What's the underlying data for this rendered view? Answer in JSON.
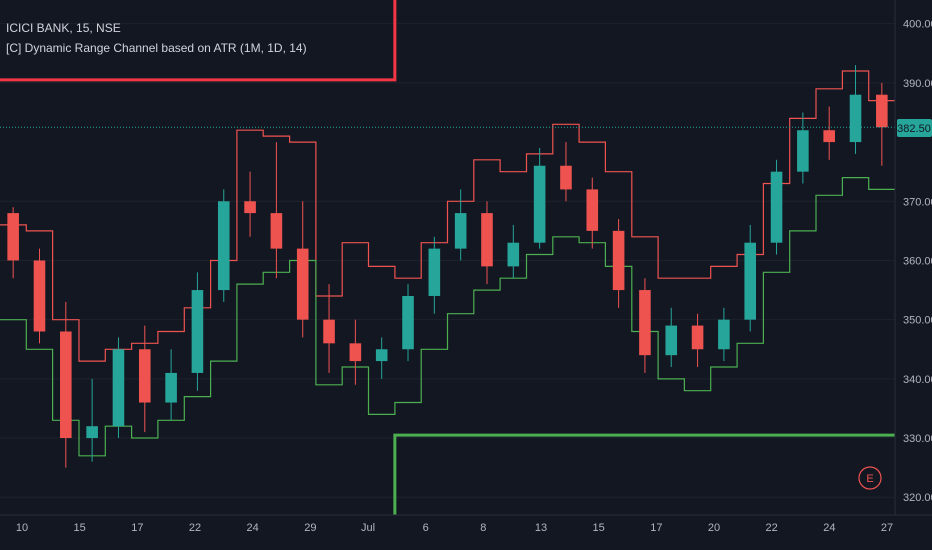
{
  "legend": {
    "symbol_line": "ICICI BANK, 15, NSE",
    "indicator_line": "[C] Dynamic Range Channel based on ATR (1M, 1D, 14)"
  },
  "price_badge": {
    "value": "382.50",
    "color": "#26a69a"
  },
  "event_marker": {
    "label": "E",
    "color": "#ef5350"
  },
  "colors": {
    "background": "#131722",
    "upper_channel": "#ef5350",
    "lower_channel": "#4caf50",
    "monthly_upper": "#f23645",
    "monthly_lower": "#4caf50",
    "candle_up": "#26a69a",
    "candle_down": "#ef5350",
    "last_price_line": "#26a69a"
  },
  "chart_data": {
    "type": "line",
    "title": "ICICI BANK, 15, NSE",
    "x_ticks": [
      "10",
      "15",
      "17",
      "22",
      "24",
      "29",
      "Jul",
      "6",
      "8",
      "13",
      "15",
      "17",
      "20",
      "22",
      "24",
      "27"
    ],
    "y_ticks": [
      "400.00",
      "390.00",
      "370.00",
      "360.00",
      "350.00",
      "340.00",
      "330.00",
      "320.00"
    ],
    "ylim": [
      317,
      404
    ],
    "last_price": 382.5,
    "monthly_range": {
      "upper": 390.5,
      "lower": 330.5,
      "switch_after_session": 15
    },
    "sessions": [
      {
        "date": "10",
        "open": 368,
        "high": 369,
        "low": 357,
        "close": 360,
        "upper": 366,
        "lower": 350
      },
      {
        "date": "13",
        "open": 360,
        "high": 362,
        "low": 346,
        "close": 348,
        "upper": 365,
        "lower": 345
      },
      {
        "date": "14",
        "open": 348,
        "high": 353,
        "low": 325,
        "close": 330,
        "upper": 350,
        "lower": 333
      },
      {
        "date": "15",
        "open": 330,
        "high": 340,
        "low": 326,
        "close": 332,
        "upper": 343,
        "lower": 327
      },
      {
        "date": "16",
        "open": 332,
        "high": 347,
        "low": 330,
        "close": 345,
        "upper": 345,
        "lower": 332
      },
      {
        "date": "17",
        "open": 345,
        "high": 349,
        "low": 331,
        "close": 336,
        "upper": 346,
        "lower": 330
      },
      {
        "date": "18",
        "open": 336,
        "high": 345,
        "low": 333,
        "close": 341,
        "upper": 348,
        "lower": 333
      },
      {
        "date": "21",
        "open": 341,
        "high": 358,
        "low": 338,
        "close": 355,
        "upper": 352,
        "lower": 337
      },
      {
        "date": "22",
        "open": 355,
        "high": 372,
        "low": 353,
        "close": 370,
        "upper": 360,
        "lower": 343
      },
      {
        "date": "23",
        "open": 370,
        "high": 375,
        "low": 364,
        "close": 368,
        "upper": 382,
        "lower": 356
      },
      {
        "date": "24",
        "open": 368,
        "high": 380,
        "low": 357,
        "close": 362,
        "upper": 381,
        "lower": 358
      },
      {
        "date": "25",
        "open": 362,
        "high": 370,
        "low": 347,
        "close": 350,
        "upper": 380,
        "lower": 360
      },
      {
        "date": "28",
        "open": 350,
        "high": 356,
        "low": 341,
        "close": 346,
        "upper": 354,
        "lower": 339
      },
      {
        "date": "29",
        "open": 346,
        "high": 350,
        "low": 339,
        "close": 343,
        "upper": 363,
        "lower": 342
      },
      {
        "date": "30",
        "open": 343,
        "high": 347,
        "low": 340,
        "close": 345,
        "upper": 359,
        "lower": 334
      },
      {
        "date": "1",
        "open": 345,
        "high": 356,
        "low": 343,
        "close": 354,
        "upper": 357,
        "lower": 336
      },
      {
        "date": "2",
        "open": 354,
        "high": 364,
        "low": 351,
        "close": 362,
        "upper": 363,
        "lower": 345
      },
      {
        "date": "3",
        "open": 362,
        "high": 372,
        "low": 360,
        "close": 368,
        "upper": 370,
        "lower": 351
      },
      {
        "date": "6",
        "open": 368,
        "high": 370,
        "low": 356,
        "close": 359,
        "upper": 377,
        "lower": 355
      },
      {
        "date": "7",
        "open": 359,
        "high": 366,
        "low": 357,
        "close": 363,
        "upper": 375,
        "lower": 357
      },
      {
        "date": "8",
        "open": 363,
        "high": 379,
        "low": 362,
        "close": 376,
        "upper": 378,
        "lower": 361
      },
      {
        "date": "9",
        "open": 376,
        "high": 380,
        "low": 370,
        "close": 372,
        "upper": 383,
        "lower": 364
      },
      {
        "date": "10",
        "open": 372,
        "high": 374,
        "low": 362,
        "close": 365,
        "upper": 380,
        "lower": 363
      },
      {
        "date": "13",
        "open": 365,
        "high": 367,
        "low": 352,
        "close": 355,
        "upper": 375,
        "lower": 359
      },
      {
        "date": "14",
        "open": 355,
        "high": 357,
        "low": 341,
        "close": 344,
        "upper": 364,
        "lower": 348
      },
      {
        "date": "15",
        "open": 344,
        "high": 352,
        "low": 342,
        "close": 349,
        "upper": 357,
        "lower": 340
      },
      {
        "date": "16",
        "open": 349,
        "high": 351,
        "low": 342,
        "close": 345,
        "upper": 357,
        "lower": 338
      },
      {
        "date": "17",
        "open": 345,
        "high": 352,
        "low": 343,
        "close": 350,
        "upper": 359,
        "lower": 342
      },
      {
        "date": "20",
        "open": 350,
        "high": 366,
        "low": 348,
        "close": 363,
        "upper": 361,
        "lower": 346
      },
      {
        "date": "21",
        "open": 363,
        "high": 377,
        "low": 361,
        "close": 375,
        "upper": 373,
        "lower": 358
      },
      {
        "date": "22",
        "open": 375,
        "high": 385,
        "low": 373,
        "close": 382,
        "upper": 384,
        "lower": 365
      },
      {
        "date": "23",
        "open": 382,
        "high": 386,
        "low": 377,
        "close": 380,
        "upper": 389,
        "lower": 371
      },
      {
        "date": "24",
        "open": 380,
        "high": 393,
        "low": 378,
        "close": 388,
        "upper": 392,
        "lower": 374
      },
      {
        "date": "27",
        "open": 388,
        "high": 390,
        "low": 376,
        "close": 382.5,
        "upper": 387,
        "lower": 372
      }
    ]
  }
}
